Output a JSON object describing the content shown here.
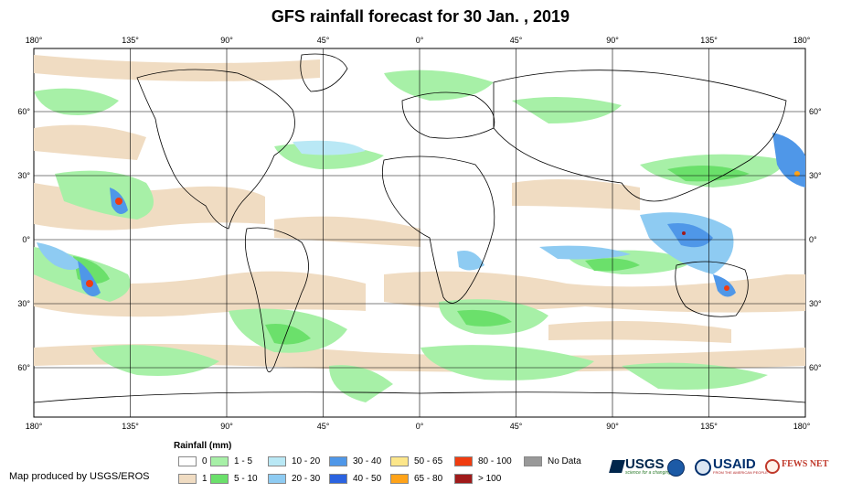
{
  "title": "GFS rainfall forecast for 30 Jan. , 2019",
  "lon_labels": [
    "180°",
    "135°",
    "90°",
    "45°",
    "0°",
    "45°",
    "90°",
    "135°",
    "180°"
  ],
  "lat_labels": [
    "60°",
    "30°",
    "0°",
    "30°",
    "60°"
  ],
  "legend": {
    "title": "Rainfall (mm)",
    "items": [
      {
        "label": "0",
        "color": "#ffffff"
      },
      {
        "label": "1",
        "color": "#f0dcc2"
      },
      {
        "label": "1 - 5",
        "color": "#a7f0a7"
      },
      {
        "label": "5 - 10",
        "color": "#6be06b"
      },
      {
        "label": "10 - 20",
        "color": "#b9e8f5"
      },
      {
        "label": "20 - 30",
        "color": "#8ecbf2"
      },
      {
        "label": "30 - 40",
        "color": "#4f97e8"
      },
      {
        "label": "40 - 50",
        "color": "#2b63e0"
      },
      {
        "label": "50 - 65",
        "color": "#fce68a"
      },
      {
        "label": "65 - 80",
        "color": "#ffa319"
      },
      {
        "label": "80 - 100",
        "color": "#f03c10"
      },
      {
        "label": "> 100",
        "color": "#a01a1a"
      },
      {
        "label": "No Data",
        "color": "#999999"
      }
    ]
  },
  "credit": "Map produced by USGS/EROS",
  "logos": {
    "usgs": "USGS",
    "usgs_tagline": "science for a changing world",
    "usaid": "USAID",
    "usaid_tagline": "FROM THE AMERICAN PEOPLE",
    "fews": "FEWS NET"
  },
  "colors": {
    "usgs": "#00264c",
    "usaid": "#002f6c",
    "fews": "#c0392b",
    "grid": "#000000"
  }
}
